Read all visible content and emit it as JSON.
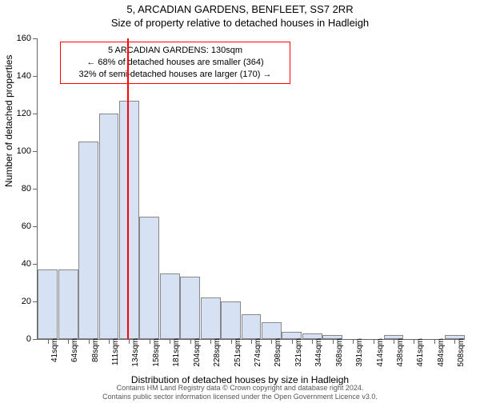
{
  "title_main": "5, ARCADIAN GARDENS, BENFLEET, SS7 2RR",
  "title_sub": "Size of property relative to detached houses in Hadleigh",
  "y_axis_label": "Number of detached properties",
  "x_axis_label": "Distribution of detached houses by size in Hadleigh",
  "chart": {
    "type": "histogram",
    "background_color": "#ffffff",
    "bar_color": "#d6e1f4",
    "bar_border_color": "#888888",
    "axis_color": "#666666",
    "ylim": [
      0,
      160
    ],
    "ytick_step": 20,
    "xticks": [
      "41sqm",
      "64sqm",
      "88sqm",
      "111sqm",
      "134sqm",
      "158sqm",
      "181sqm",
      "204sqm",
      "228sqm",
      "251sqm",
      "274sqm",
      "298sqm",
      "321sqm",
      "344sqm",
      "368sqm",
      "391sqm",
      "414sqm",
      "438sqm",
      "461sqm",
      "484sqm",
      "508sqm"
    ],
    "values": [
      37,
      37,
      105,
      120,
      127,
      65,
      35,
      33,
      22,
      20,
      13,
      9,
      4,
      3,
      2,
      0,
      0,
      2,
      0,
      0,
      2
    ],
    "reference_line": {
      "index": 4,
      "offset": -0.1,
      "color": "#ff0000",
      "width": 2
    },
    "title_fontsize": 13,
    "label_fontsize": 12,
    "tick_fontsize": 11
  },
  "annotation": {
    "line1": "5 ARCADIAN GARDENS: 130sqm",
    "line2": "← 68% of detached houses are smaller (364)",
    "line3": "32% of semi-detached houses are larger (170) →",
    "border_color": "#ff0000",
    "background_color": "#ffffff",
    "fontsize": 11
  },
  "footer": {
    "line1": "Contains HM Land Registry data © Crown copyright and database right 2024.",
    "line2": "Contains public sector information licensed under the Open Government Licence v3.0."
  }
}
